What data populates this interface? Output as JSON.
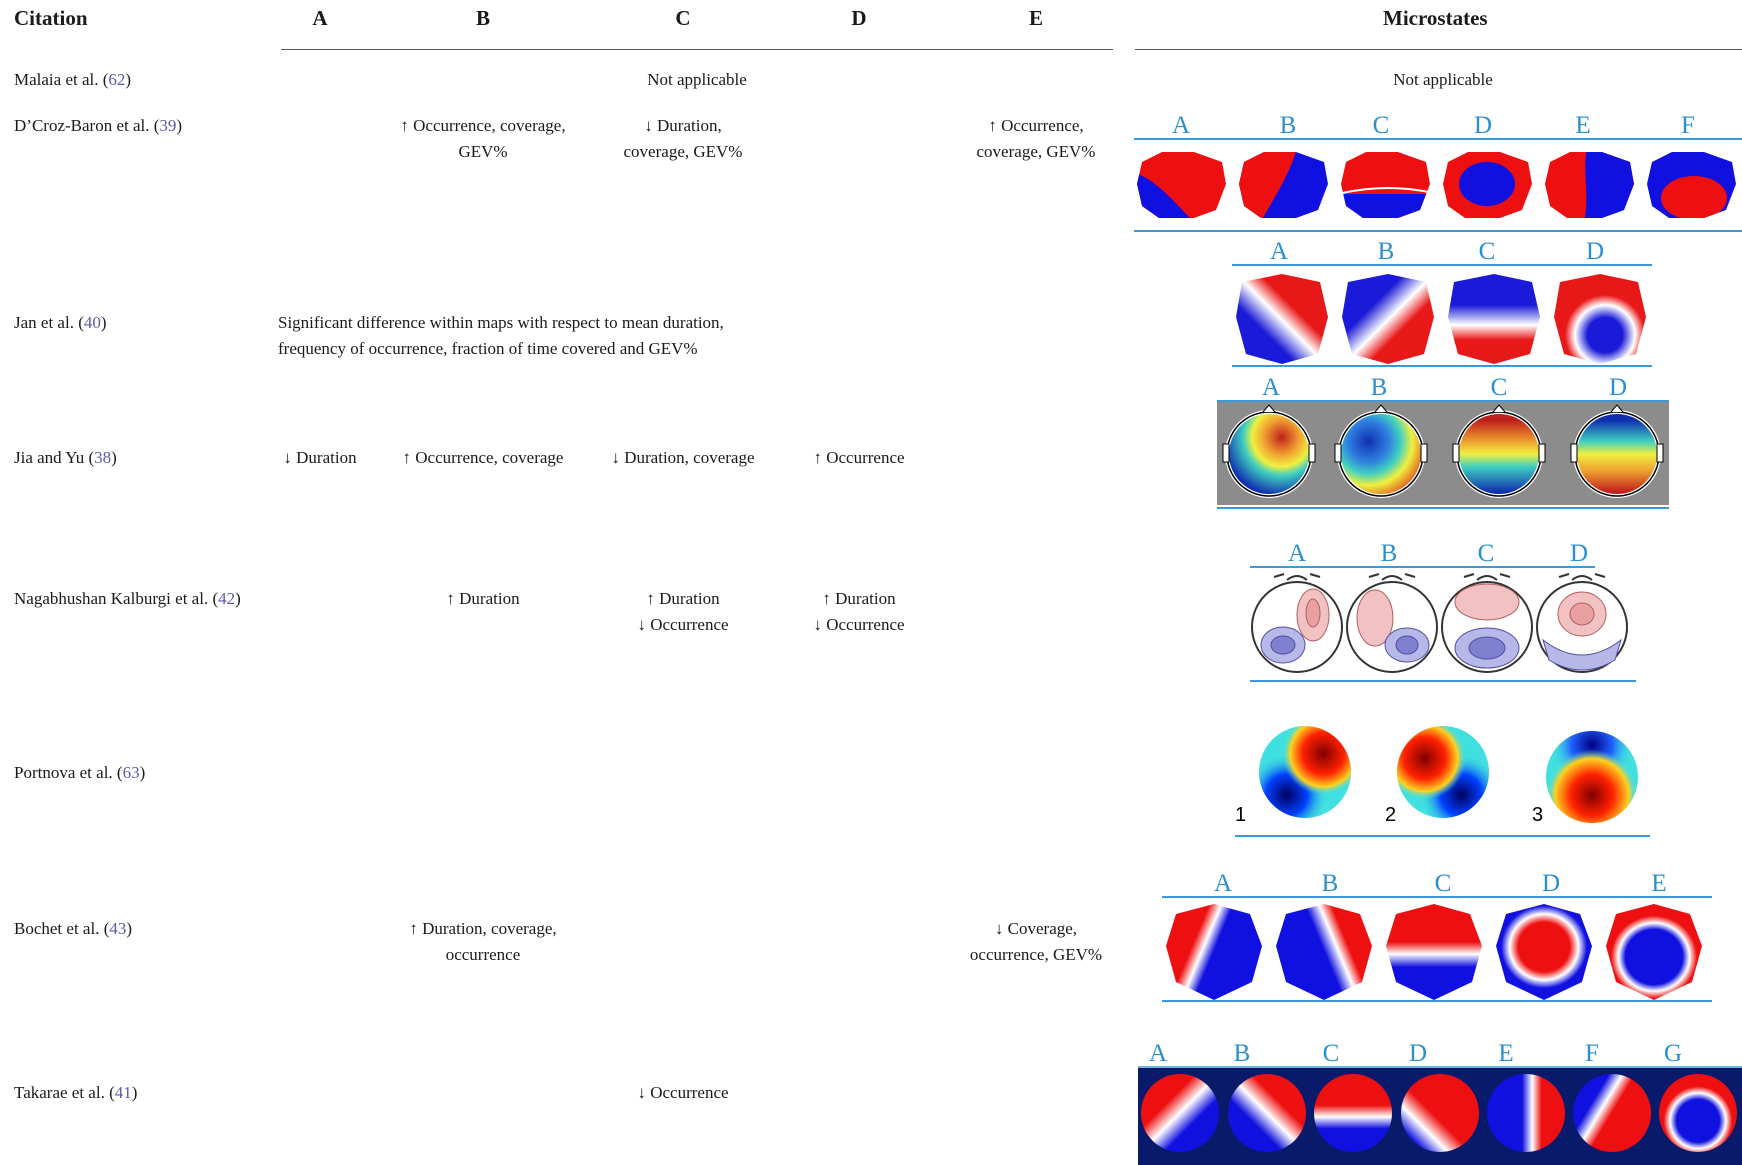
{
  "headers": {
    "citation": "Citation",
    "a": "A",
    "b": "B",
    "c": "C",
    "d": "D",
    "e": "E",
    "microstates": "Microstates"
  },
  "rows": [
    {
      "name": "Malaia et al. (",
      "ref": "62",
      "close": ")",
      "span": "Not applicable",
      "micro": "Not applicable"
    },
    {
      "name": "D’Croz-Baron et al. (",
      "ref": "39",
      "close": ")",
      "b": [
        "↑ Occurrence, coverage,",
        "GEV%"
      ],
      "c": [
        "↓ Duration,",
        "coverage, GEV%"
      ],
      "e": [
        "↑ Occurrence,",
        "coverage, GEV%"
      ],
      "labels": [
        "A",
        "B",
        "C",
        "D",
        "E",
        "F"
      ]
    },
    {
      "name": "Jan et al. (",
      "ref": "40",
      "close": ")",
      "span": [
        "Significant difference within maps with respect to mean duration,",
        "frequency of occurrence, fraction of time covered and GEV%"
      ],
      "labels": [
        "A",
        "B",
        "C",
        "D"
      ]
    },
    {
      "name": "Jia and Yu (",
      "ref": "38",
      "close": ")",
      "a": "↓ Duration",
      "b": "↑ Occurrence, coverage",
      "c": "↓ Duration, coverage",
      "d": "↑ Occurrence",
      "labels": [
        "A",
        "B",
        "C",
        "D"
      ]
    },
    {
      "name": "Nagabhushan Kalburgi et al. (",
      "ref": "42",
      "close": ")",
      "b": "↑ Duration",
      "c": [
        "↑ Duration",
        "↓ Occurrence"
      ],
      "d": [
        "↑ Duration",
        "↓ Occurrence"
      ],
      "labels": [
        "A",
        "B",
        "C",
        "D"
      ]
    },
    {
      "name": "Portnova et al. (",
      "ref": "63",
      "close": ")",
      "labels": [
        "1",
        "2",
        "3"
      ]
    },
    {
      "name": "Bochet et al. (",
      "ref": "43",
      "close": ")",
      "b": [
        "↑ Duration, coverage,",
        "occurrence"
      ],
      "e": [
        "↓ Coverage,",
        "occurrence, GEV%"
      ],
      "labels": [
        "A",
        "B",
        "C",
        "D",
        "E"
      ]
    },
    {
      "name": "Takarae et al. (",
      "ref": "41",
      "close": ")",
      "c": "↓ Occurrence",
      "labels": [
        "A",
        "B",
        "C",
        "D",
        "E",
        "F",
        "G"
      ]
    }
  ],
  "colors": {
    "label_blue": "#2a8fd0",
    "ref_purple": "#5b5bb0",
    "map_red": "#ee0000",
    "map_blue": "#0000ee"
  }
}
